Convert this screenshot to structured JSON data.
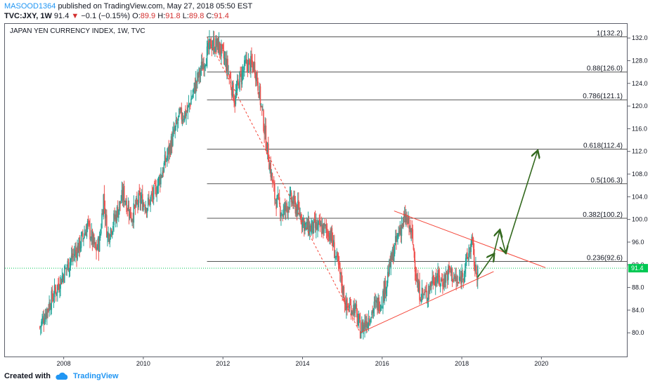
{
  "header": {
    "author": "MASOOD1364",
    "published_text": "published on TradingView.com, May 27, 2018 05:50 EST",
    "symbol": "TVC:JXY, 1W",
    "last": "91.4",
    "change_arrow": "▼",
    "change": "−0.1 (−0.15%)",
    "o_label": "O:",
    "o_value": "89.9",
    "h_label": "H:",
    "h_value": "91.8",
    "l_label": "L:",
    "l_value": "89.8",
    "c_label": "C:",
    "c_value": "91.4"
  },
  "footer": {
    "created_with": "Created with",
    "brand": "TradingView"
  },
  "colors": {
    "up": "#26a69a",
    "down": "#ef5350",
    "price_line": "#00c853",
    "trend": "#f44336",
    "projection": "#33691e",
    "fib": "#555555"
  },
  "chart_data": {
    "type": "candlestick",
    "title": "JAPAN YEN CURRENCY INDEX, 1W, TVC",
    "x_ticks": [
      "2008",
      "2010",
      "2012",
      "2014",
      "2016",
      "2018",
      "2020"
    ],
    "y_ticks": [
      80.0,
      84.0,
      88.0,
      92.0,
      96.0,
      100.0,
      104.0,
      108.0,
      112.0,
      116.0,
      120.0,
      124.0,
      128.0,
      132.0
    ],
    "xlim": [
      2006.7,
      2021.9
    ],
    "ylim": [
      77.8,
      134.0
    ],
    "last_price": 91.4,
    "last_price_label": "91.4",
    "fib_levels": [
      {
        "label": "1(132.2)",
        "value": 132.2
      },
      {
        "label": "0.88(126.0)",
        "value": 126.0
      },
      {
        "label": "0.786(121.1)",
        "value": 121.1
      },
      {
        "label": "0.618(112.4)",
        "value": 112.4
      },
      {
        "label": "0.5(106.3)",
        "value": 106.3
      },
      {
        "label": "0.382(100.2)",
        "value": 100.2
      },
      {
        "label": "0.236(92.6)",
        "value": 92.6
      }
    ],
    "fib_x_start": 2011.6,
    "price_path": [
      [
        2007.4,
        81.0
      ],
      [
        2007.6,
        84.5
      ],
      [
        2007.9,
        89.0
      ],
      [
        2008.1,
        92.0
      ],
      [
        2008.4,
        95.5
      ],
      [
        2008.6,
        99.0
      ],
      [
        2008.8,
        94.5
      ],
      [
        2008.9,
        96.0
      ],
      [
        2009.0,
        104.0
      ],
      [
        2009.1,
        97.0
      ],
      [
        2009.3,
        100.5
      ],
      [
        2009.5,
        104.5
      ],
      [
        2009.7,
        100.5
      ],
      [
        2009.9,
        103.5
      ],
      [
        2010.1,
        102.5
      ],
      [
        2010.3,
        105.0
      ],
      [
        2010.5,
        109.0
      ],
      [
        2010.7,
        113.5
      ],
      [
        2010.9,
        118.0
      ],
      [
        2011.1,
        119.0
      ],
      [
        2011.3,
        123.5
      ],
      [
        2011.5,
        127.5
      ],
      [
        2011.7,
        131.0
      ],
      [
        2011.9,
        130.5
      ],
      [
        2012.1,
        127.0
      ],
      [
        2012.3,
        121.0
      ],
      [
        2012.4,
        124.5
      ],
      [
        2012.6,
        127.5
      ],
      [
        2012.8,
        127.0
      ],
      [
        2012.9,
        123.0
      ],
      [
        2013.1,
        113.0
      ],
      [
        2013.3,
        104.0
      ],
      [
        2013.5,
        101.0
      ],
      [
        2013.7,
        103.5
      ],
      [
        2013.9,
        101.5
      ],
      [
        2014.1,
        98.5
      ],
      [
        2014.3,
        98.5
      ],
      [
        2014.5,
        98.5
      ],
      [
        2014.7,
        97.5
      ],
      [
        2014.9,
        91.5
      ],
      [
        2015.1,
        84.5
      ],
      [
        2015.3,
        84.5
      ],
      [
        2015.45,
        80.5
      ],
      [
        2015.6,
        82.0
      ],
      [
        2015.8,
        84.5
      ],
      [
        2016.0,
        86.0
      ],
      [
        2016.2,
        92.0
      ],
      [
        2016.45,
        98.5
      ],
      [
        2016.6,
        100.2
      ],
      [
        2016.75,
        97.0
      ],
      [
        2016.9,
        87.5
      ],
      [
        2017.1,
        86.5
      ],
      [
        2017.3,
        90.0
      ],
      [
        2017.5,
        89.0
      ],
      [
        2017.7,
        91.0
      ],
      [
        2017.9,
        88.5
      ],
      [
        2018.1,
        92.0
      ],
      [
        2018.25,
        96.0
      ],
      [
        2018.35,
        90.5
      ],
      [
        2018.4,
        91.4
      ]
    ],
    "trendlines": [
      {
        "name": "resistance",
        "from": [
          2016.3,
          101.5
        ],
        "to": [
          2020.1,
          91.5
        ],
        "dashed": false
      },
      {
        "name": "support",
        "from": [
          2015.45,
          80.0
        ],
        "to": [
          2018.8,
          90.8
        ],
        "dashed": false
      },
      {
        "name": "decline",
        "from": [
          2011.6,
          132.2
        ],
        "to": [
          2015.45,
          80.0
        ],
        "dashed": true
      }
    ],
    "projection_path": [
      [
        2018.4,
        89.8
      ],
      [
        2018.8,
        93.8
      ],
      [
        2018.95,
        98.0
      ],
      [
        2019.1,
        94.2
      ],
      [
        2019.9,
        112.0
      ]
    ]
  }
}
